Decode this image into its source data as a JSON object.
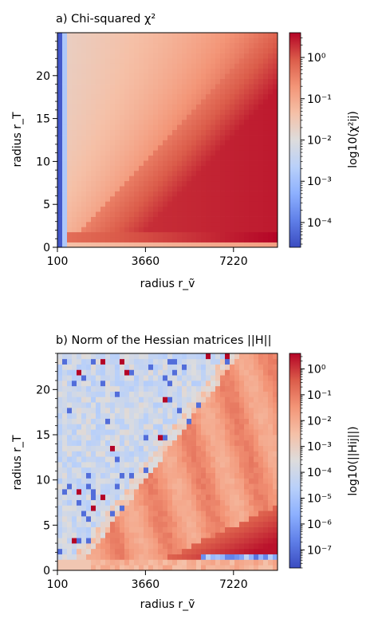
{
  "chart_data": [
    {
      "type": "heatmap",
      "title": "a) Chi-squared χ²",
      "xlabel": "radius r_ṽ",
      "ylabel": "radius r_T",
      "xticks": [
        "100",
        "3660",
        "7220"
      ],
      "xlim": [
        100,
        9000
      ],
      "yticks": [
        "0",
        "5",
        "10",
        "15",
        "20"
      ],
      "ylim": [
        0,
        25
      ],
      "colorbar": {
        "label": "log10(χ²ij)",
        "scale": "log",
        "cmap": "coolwarm",
        "ticks": [
          "10^-4",
          "10^-3",
          "10^-2",
          "10^-1",
          "10^0"
        ],
        "range_log10": [
          -4.6,
          0.6
        ]
      },
      "colors": {
        "low": "#3b4cc0",
        "mid": "#dddddd",
        "high": "#b40426"
      }
    },
    {
      "type": "heatmap",
      "title": "b) Norm of the Hessian matrices ||H||",
      "xlabel": "radius r_ṽ",
      "ylabel": "radius r_T",
      "xticks": [
        "100",
        "3660",
        "7220"
      ],
      "xlim": [
        100,
        9000
      ],
      "yticks": [
        "0",
        "5",
        "10",
        "15",
        "20"
      ],
      "ylim": [
        0,
        24
      ],
      "colorbar": {
        "label": "log10(||Hij||)",
        "scale": "log",
        "cmap": "coolwarm",
        "ticks": [
          "10^-7",
          "10^-6",
          "10^-5",
          "10^-4",
          "10^-3",
          "10^-2",
          "10^-1",
          "10^0"
        ],
        "range_log10": [
          -7.7,
          0.6
        ]
      },
      "colors": {
        "low": "#3b4cc0",
        "mid": "#dddddd",
        "high": "#b40426"
      }
    }
  ]
}
